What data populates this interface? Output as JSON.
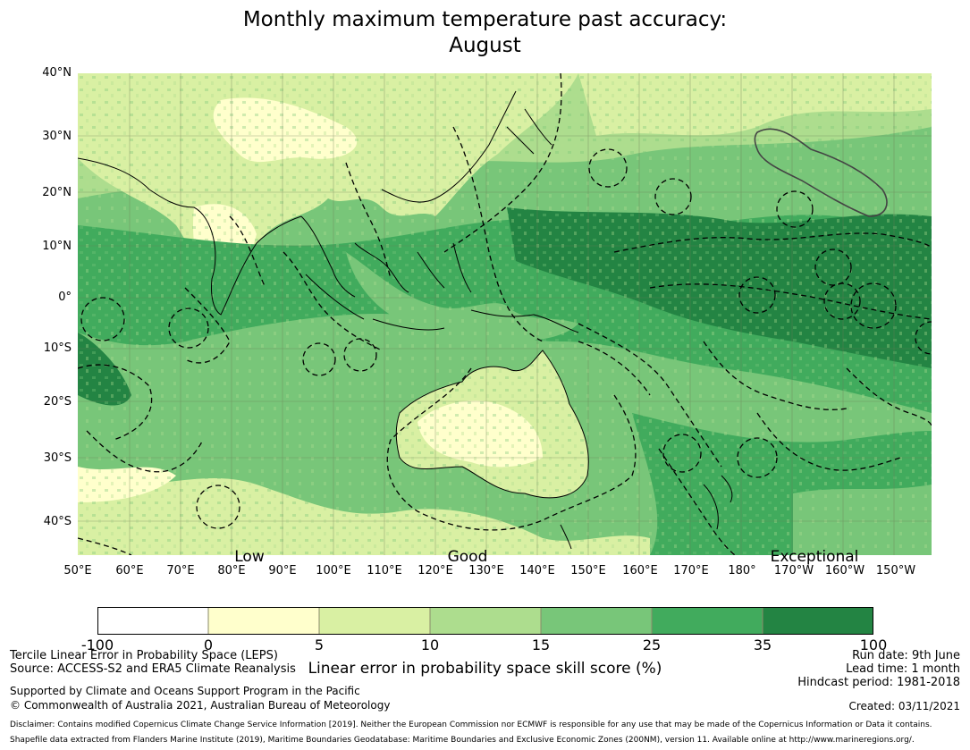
{
  "title": {
    "line1": "Monthly maximum temperature past accuracy:",
    "line2": "August"
  },
  "map": {
    "lat_labels": [
      "40°N",
      "30°N",
      "20°N",
      "10°N",
      "0°",
      "10°S",
      "20°S",
      "30°S",
      "40°S"
    ],
    "lon_labels": [
      "50°E",
      "60°E",
      "70°E",
      "80°E",
      "90°E",
      "100°E",
      "110°E",
      "120°E",
      "130°E",
      "140°E",
      "150°E",
      "160°E",
      "170°E",
      "180°",
      "170°W",
      "160°W",
      "150°W"
    ],
    "category_labels": [
      "Low",
      "Good",
      "Exceptional"
    ],
    "land_color": "#fefdcf",
    "ocean_color": "#3aa35a"
  },
  "colorbar": {
    "ticks": [
      "-100",
      "0",
      "5",
      "10",
      "15",
      "25",
      "35",
      "100"
    ],
    "colors": [
      "#ffffff",
      "#ffffcc",
      "#d9f0a3",
      "#addd8e",
      "#78c679",
      "#41ab5d",
      "#238443"
    ],
    "label": "Linear error in probability space skill score (%)"
  },
  "footer": {
    "left_line1": "Tercile Linear Error in Probability Space (LEPS)",
    "left_line2": "Source: ACCESS-S2 and ERA5 Climate Reanalysis",
    "support_line1": "Supported by Climate and Oceans Support Program in the Pacific",
    "support_line2": "© Commonwealth of Australia 2021, Australian Bureau of Meteorology",
    "run_date": "Run date: 9th June",
    "lead_time": "Lead time: 1 month",
    "hindcast": "Hindcast period: 1981-2018",
    "created": "Created: 03/11/2021",
    "disclaimer": "Disclaimer: Contains modified Copernicus Climate Change Service Information [2019]. Neither the European Commission nor ECMWF is responsible for any use that may be made of the Copernicus Information or Data it contains.",
    "shapefile": "Shapefile data extracted from Flanders Marine Institute (2019), Maritime Boundaries Geodatabase: Maritime Boundaries and Exclusive Economic Zones (200NM), version 11. Available online at http://www.marineregions.org/."
  }
}
